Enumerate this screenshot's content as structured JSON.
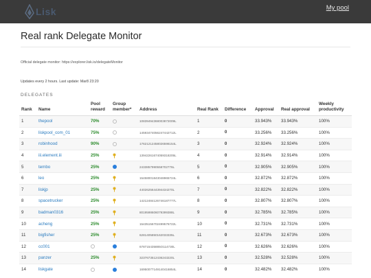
{
  "navbar": {
    "brand": "Lisk",
    "link": "My pool"
  },
  "page": {
    "title": "Real rank Delegate Monitor",
    "info": "Official delegate monitor: https://explorer.lisk.io/delegateMonitor",
    "update": "Updates every 2 hours. Last update: Mar8 23:20",
    "section": "DELEGATES"
  },
  "table": {
    "headers": {
      "rank": "Rank",
      "name": "Name",
      "pool_reward": "Pool reward",
      "group_member": "Group member*",
      "address": "Address",
      "real_rank": "Real Rank",
      "difference": "Difference",
      "approval": "Approval",
      "real_approval": "Real approval",
      "productivity": "Weekly productivity"
    },
    "rows": [
      {
        "rank": "1",
        "name": "thepool",
        "reward": "70%",
        "member": "none",
        "address": "10839494368003872009L",
        "real_rank": "1",
        "diff": "0",
        "approval": "33.943%",
        "real_approval": "33.943%",
        "productivity": "100%"
      },
      {
        "rank": "2",
        "name": "liskpool_com_01",
        "reward": "75%",
        "member": "none",
        "address": "14593474056247442712L",
        "real_rank": "2",
        "diff": "0",
        "approval": "33.256%",
        "real_approval": "33.256%",
        "productivity": "100%"
      },
      {
        "rank": "3",
        "name": "robinhood",
        "reward": "90%",
        "member": "none",
        "address": "17621212458026596154L",
        "real_rank": "3",
        "diff": "0",
        "approval": "32.924%",
        "real_approval": "32.924%",
        "productivity": "100%"
      },
      {
        "rank": "4",
        "name": "iii.element.iii",
        "reward": "25%",
        "member": "pin",
        "address": "13942261674059318205L",
        "real_rank": "4",
        "diff": "0",
        "approval": "32.914%",
        "real_approval": "32.914%",
        "productivity": "100%"
      },
      {
        "rank": "5",
        "name": "tembo",
        "reward": "25%",
        "member": "blue",
        "address": "2433857990558702776L",
        "real_rank": "5",
        "diff": "0",
        "approval": "32.905%",
        "real_approval": "32.905%",
        "productivity": "100%"
      },
      {
        "rank": "6",
        "name": "leo",
        "reward": "25%",
        "member": "pin",
        "address": "15458001843048965724L",
        "real_rank": "6",
        "diff": "0",
        "approval": "32.872%",
        "real_approval": "32.872%",
        "productivity": "100%"
      },
      {
        "rank": "7",
        "name": "liskjp",
        "reward": "25%",
        "member": "pin",
        "address": "4402625644394434270L",
        "real_rank": "7",
        "diff": "0",
        "approval": "32.822%",
        "real_approval": "32.822%",
        "productivity": "100%"
      },
      {
        "rank": "8",
        "name": "spacetrucker",
        "reward": "25%",
        "member": "pin",
        "address": "14212484126746187777L",
        "real_rank": "8",
        "diff": "0",
        "approval": "32.807%",
        "real_approval": "32.807%",
        "productivity": "100%"
      },
      {
        "rank": "9",
        "name": "badman0316",
        "reward": "25%",
        "member": "pin",
        "address": "8019598606079399388L",
        "real_rank": "9",
        "diff": "0",
        "approval": "32.785%",
        "real_approval": "32.785%",
        "productivity": "100%"
      },
      {
        "rank": "10",
        "name": "acheng",
        "reward": "25%",
        "member": "pin",
        "address": "15435156702499576722L",
        "real_rank": "10",
        "diff": "0",
        "approval": "32.731%",
        "real_approval": "32.731%",
        "productivity": "100%"
      },
      {
        "rank": "11",
        "name": "bigfisher",
        "reward": "25%",
        "member": "pin",
        "address": "6281405850162033335L",
        "real_rank": "11",
        "diff": "0",
        "approval": "32.673%",
        "real_approval": "32.673%",
        "productivity": "100%"
      },
      {
        "rank": "12",
        "name": "cc001",
        "reward": "",
        "member": "empty-blue",
        "address": "678715435885O114730L",
        "real_rank": "12",
        "diff": "0",
        "approval": "32.626%",
        "real_approval": "32.626%",
        "productivity": "100%"
      },
      {
        "rank": "13",
        "name": "panzer",
        "reward": "25%",
        "member": "pin",
        "address": "3237673512436243220L",
        "real_rank": "13",
        "diff": "0",
        "approval": "32.528%",
        "real_approval": "32.528%",
        "productivity": "100%"
      },
      {
        "rank": "14",
        "name": "liskgate",
        "reward": "",
        "member": "empty-blue",
        "address": "16950077149140416854L",
        "real_rank": "14",
        "diff": "0",
        "approval": "32.482%",
        "real_approval": "32.482%",
        "productivity": "100%"
      }
    ]
  },
  "colors": {
    "navbar": "#3a3a3a",
    "link": "#2a7bbf",
    "reward": "#2a8a2a",
    "member_blue": "#2a7fdc",
    "member_pin": "#e0b020"
  }
}
